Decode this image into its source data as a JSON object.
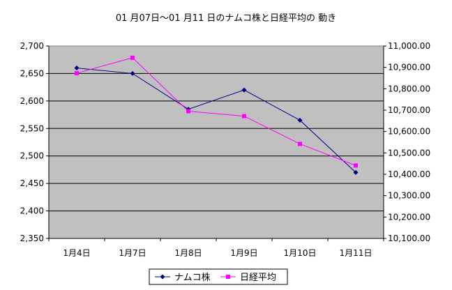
{
  "chart_data": {
    "type": "line",
    "title": "01 月07日～01 月11 日のナムコ株と日経平均の 動き",
    "categories": [
      "1月4日",
      "1月7日",
      "1月8日",
      "1月9日",
      "1月10日",
      "1月11日"
    ],
    "series": [
      {
        "name": "ナムコ株",
        "axis": "left",
        "color": "#000080",
        "marker": "diamond",
        "values": [
          2660,
          2650,
          2585,
          2620,
          2565,
          2470
        ]
      },
      {
        "name": "日経平均",
        "axis": "right",
        "color": "#ff00ff",
        "marker": "square",
        "values": [
          10873.0,
          10945.0,
          10695.0,
          10672.0,
          10542.0,
          10441.0
        ]
      }
    ],
    "ylim_left": [
      2350,
      2700
    ],
    "yticks_left": [
      "2,350",
      "2,400",
      "2,450",
      "2,500",
      "2,550",
      "2,600",
      "2,650",
      "2,700"
    ],
    "ylim_right": [
      10100,
      11000
    ],
    "yticks_right": [
      "10,100.00",
      "10,200.00",
      "10,300.00",
      "10,400.00",
      "10,500.00",
      "10,600.00",
      "10,700.00",
      "10,800.00",
      "10,900.00",
      "11,000.00"
    ],
    "plot_background": "#c0c0c0",
    "grid": true,
    "legend_position": "bottom"
  }
}
